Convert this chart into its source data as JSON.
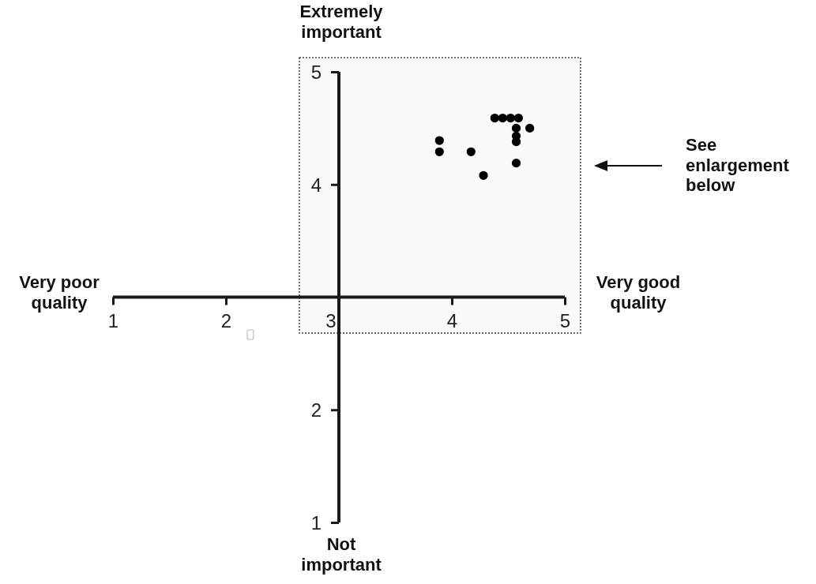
{
  "chart_data": {
    "type": "scatter",
    "color": "#000000",
    "marker": "circle",
    "x": [
      3.89,
      3.89,
      4.17,
      4.28,
      4.38,
      4.45,
      4.52,
      4.59,
      4.57,
      4.57,
      4.57,
      4.69,
      4.57
    ],
    "values": [
      4.39,
      4.29,
      4.29,
      4.08,
      4.59,
      4.59,
      4.59,
      4.59,
      4.5,
      4.43,
      4.38,
      4.5,
      4.19
    ],
    "xlim": [
      1,
      5
    ],
    "ylim": [
      1,
      5
    ],
    "xticks": [
      1,
      2,
      3,
      4,
      5
    ],
    "yticks": [
      1,
      2,
      4,
      5
    ],
    "annotations": [
      "Very poor quality",
      "Very good quality",
      "Extremely important",
      "Not important",
      "See enlargement below"
    ]
  }
}
